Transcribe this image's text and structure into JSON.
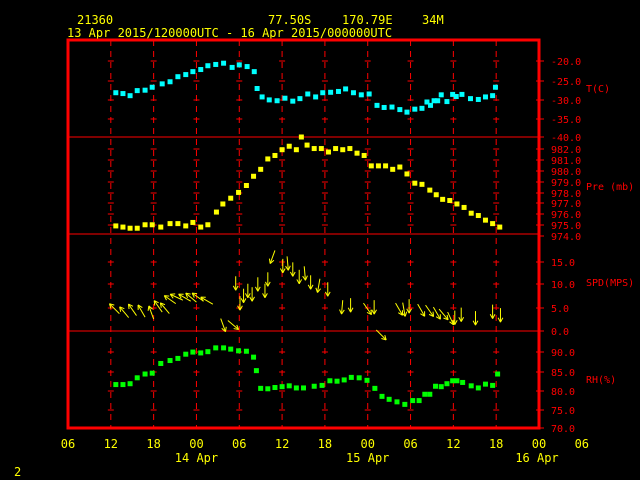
{
  "header": {
    "station": "21360",
    "lat": "77.50S",
    "lon": "170.79E",
    "elev": "34M",
    "period": "13 Apr 2015/120000UTC - 16 Apr 2015/000000UTC"
  },
  "footer": {
    "page_number": "2"
  },
  "colors": {
    "frame": "#ff0000",
    "grid": "#ff0000",
    "text": "#ffff00",
    "temp": "#00ffff",
    "pres": "#ffff00",
    "wind": "#ffff00",
    "rh": "#00ff00"
  },
  "chart_data": {
    "type": "scatter",
    "x_axis": {
      "unit": "hours since 13 Apr 06UTC",
      "range": [
        0,
        66
      ],
      "hour_ticks": [
        "06",
        "12",
        "18",
        "00",
        "06",
        "12",
        "18",
        "00",
        "06",
        "12",
        "18",
        "00",
        "06"
      ],
      "day_labels": [
        "14 Apr",
        "15 Apr",
        "16 Apr"
      ]
    },
    "panels": [
      {
        "name": "T(C)",
        "ticks": [
          "-20.0",
          "-25.0",
          "-30.0",
          "-35.0",
          "-40.0"
        ],
        "ylim": [
          -40,
          -17
        ],
        "points": [
          [
            6.7,
            -29.5
          ],
          [
            7.7,
            -29.7
          ],
          [
            8.7,
            -30.2
          ],
          [
            9.7,
            -29.0
          ],
          [
            10.8,
            -28.9
          ],
          [
            11.8,
            -28.2
          ],
          [
            13.2,
            -27.4
          ],
          [
            14.3,
            -26.9
          ],
          [
            15.4,
            -25.7
          ],
          [
            16.5,
            -25.2
          ],
          [
            17.5,
            -24.5
          ],
          [
            18.6,
            -24.0
          ],
          [
            19.6,
            -23.1
          ],
          [
            20.7,
            -22.8
          ],
          [
            21.8,
            -22.5
          ],
          [
            23.0,
            -23.5
          ],
          [
            24.0,
            -22.9
          ],
          [
            25.1,
            -23.3
          ],
          [
            26.1,
            -24.5
          ],
          [
            26.5,
            -28.5
          ],
          [
            27.2,
            -30.5
          ],
          [
            28.2,
            -31.2
          ],
          [
            29.3,
            -31.4
          ],
          [
            30.4,
            -30.8
          ],
          [
            31.5,
            -31.5
          ],
          [
            32.5,
            -30.9
          ],
          [
            33.6,
            -29.8
          ],
          [
            34.7,
            -30.5
          ],
          [
            35.7,
            -29.5
          ],
          [
            36.8,
            -29.4
          ],
          [
            37.9,
            -29.2
          ],
          [
            38.9,
            -28.6
          ],
          [
            40.0,
            -29.5
          ],
          [
            41.1,
            -30.0
          ],
          [
            42.2,
            -29.8
          ],
          [
            43.3,
            -32.5
          ],
          [
            44.3,
            -33.0
          ],
          [
            45.4,
            -32.9
          ],
          [
            46.5,
            -33.5
          ],
          [
            47.5,
            -34.1
          ],
          [
            48.6,
            -33.4
          ],
          [
            49.6,
            -33.2
          ],
          [
            50.3,
            -31.7
          ],
          [
            50.8,
            -32.5
          ],
          [
            51.3,
            -31.4
          ],
          [
            51.8,
            -31.4
          ],
          [
            52.3,
            -30.0
          ],
          [
            53.1,
            -31.6
          ],
          [
            53.9,
            -29.9
          ],
          [
            54.4,
            -30.4
          ],
          [
            55.2,
            -29.9
          ],
          [
            56.4,
            -30.9
          ],
          [
            57.5,
            -31.1
          ],
          [
            58.5,
            -30.5
          ],
          [
            59.5,
            -30.2
          ],
          [
            59.9,
            -28.2
          ]
        ]
      },
      {
        "name": "Pre (mb)",
        "ticks": [
          "982.0",
          "981.0",
          "980.0",
          "979.0",
          "978.0",
          "977.0",
          "976.0",
          "975.0",
          "974.0"
        ],
        "ylim": [
          974,
          982.4
        ],
        "points": [
          [
            6.7,
            974.7
          ],
          [
            7.7,
            974.6
          ],
          [
            8.7,
            974.5
          ],
          [
            9.7,
            974.5
          ],
          [
            10.8,
            974.8
          ],
          [
            11.8,
            974.8
          ],
          [
            13.0,
            974.6
          ],
          [
            14.3,
            974.9
          ],
          [
            15.4,
            974.9
          ],
          [
            16.5,
            974.7
          ],
          [
            17.5,
            975.0
          ],
          [
            18.6,
            974.6
          ],
          [
            19.6,
            974.8
          ],
          [
            20.8,
            975.9
          ],
          [
            21.7,
            976.6
          ],
          [
            22.8,
            977.1
          ],
          [
            23.9,
            977.6
          ],
          [
            25.0,
            978.2
          ],
          [
            26.0,
            979.0
          ],
          [
            27.0,
            979.6
          ],
          [
            28.0,
            980.5
          ],
          [
            29.0,
            980.8
          ],
          [
            30.0,
            981.3
          ],
          [
            31.0,
            981.6
          ],
          [
            32.0,
            981.3
          ],
          [
            32.7,
            982.4
          ],
          [
            33.5,
            981.7
          ],
          [
            34.5,
            981.4
          ],
          [
            35.5,
            981.4
          ],
          [
            36.5,
            981.1
          ],
          [
            37.5,
            981.4
          ],
          [
            38.5,
            981.3
          ],
          [
            39.5,
            981.4
          ],
          [
            40.5,
            981.0
          ],
          [
            41.5,
            980.8
          ],
          [
            42.5,
            979.9
          ],
          [
            43.5,
            979.9
          ],
          [
            44.5,
            979.9
          ],
          [
            45.5,
            979.6
          ],
          [
            46.5,
            979.8
          ],
          [
            47.5,
            979.2
          ],
          [
            48.6,
            978.4
          ],
          [
            49.6,
            978.3
          ],
          [
            50.7,
            977.8
          ],
          [
            51.6,
            977.4
          ],
          [
            52.5,
            977.0
          ],
          [
            53.5,
            976.9
          ],
          [
            54.5,
            976.6
          ],
          [
            55.5,
            976.3
          ],
          [
            56.5,
            975.8
          ],
          [
            57.5,
            975.6
          ],
          [
            58.5,
            975.2
          ],
          [
            59.5,
            974.9
          ],
          [
            60.5,
            974.6
          ]
        ]
      },
      {
        "name": "SPD(MPS)",
        "ticks": [
          "15.0",
          "10.0",
          "5.0",
          "0.0"
        ],
        "ylim": [
          0,
          19.5
        ],
        "wind": [
          [
            7.2,
            3.5,
            -45
          ],
          [
            8.5,
            2.7,
            -40
          ],
          [
            9.6,
            3.1,
            -35
          ],
          [
            10.8,
            2.8,
            -30
          ],
          [
            12.0,
            2.4,
            -20
          ],
          [
            13.2,
            3.8,
            -35
          ],
          [
            14.2,
            3.5,
            -40
          ],
          [
            15.1,
            5.5,
            -55
          ],
          [
            16.1,
            6.2,
            -65
          ],
          [
            17.2,
            6.0,
            -60
          ],
          [
            18.0,
            5.8,
            -50
          ],
          [
            19.0,
            6.0,
            -55
          ],
          [
            20.3,
            5.4,
            -60
          ],
          [
            21.4,
            2.5,
            160
          ],
          [
            22.4,
            2.1,
            130
          ],
          [
            23.5,
            11.0,
            180
          ],
          [
            24.1,
            7.0,
            180
          ],
          [
            24.6,
            8.5,
            180
          ],
          [
            25.2,
            9.5,
            180
          ],
          [
            25.8,
            8.8,
            180
          ],
          [
            26.6,
            10.8,
            180
          ],
          [
            27.6,
            9.5,
            180
          ],
          [
            28.0,
            11.8,
            180
          ],
          [
            29.0,
            16.2,
            200
          ],
          [
            30.1,
            14.5,
            180
          ],
          [
            30.7,
            15.0,
            175
          ],
          [
            31.5,
            13.8,
            180
          ],
          [
            32.4,
            12.3,
            180
          ],
          [
            33.1,
            13.0,
            175
          ],
          [
            34.0,
            11.2,
            180
          ],
          [
            35.3,
            10.5,
            190
          ],
          [
            36.4,
            9.8,
            180
          ],
          [
            38.5,
            6.2,
            185
          ],
          [
            39.6,
            6.6,
            180
          ],
          [
            41.4,
            5.6,
            145
          ],
          [
            42.9,
            6.2,
            180
          ],
          [
            43.2,
            0.2,
            135
          ],
          [
            45.9,
            5.6,
            150
          ],
          [
            46.9,
            5.7,
            170
          ],
          [
            47.8,
            6.4,
            180
          ],
          [
            49.0,
            5.4,
            150
          ],
          [
            50.1,
            5.2,
            145
          ],
          [
            51.2,
            4.8,
            150
          ],
          [
            52.0,
            4.4,
            140
          ],
          [
            53.2,
            3.8,
            155
          ],
          [
            54.2,
            4.1,
            180
          ],
          [
            55.1,
            4.7,
            180
          ],
          [
            57.1,
            4.0,
            180
          ],
          [
            59.5,
            5.3,
            180
          ],
          [
            60.6,
            4.6,
            180
          ]
        ]
      },
      {
        "name": "RH(%)",
        "ticks": [
          "90.0",
          "85.0",
          "80.0",
          "75.0",
          "70.0"
        ],
        "ylim": [
          70,
          93
        ],
        "points": [
          [
            6.7,
            80.3
          ],
          [
            7.7,
            80.3
          ],
          [
            8.7,
            80.5
          ],
          [
            9.7,
            81.9
          ],
          [
            10.8,
            82.8
          ],
          [
            11.8,
            83.0
          ],
          [
            13.0,
            85.3
          ],
          [
            14.3,
            86.0
          ],
          [
            15.4,
            86.5
          ],
          [
            16.5,
            87.5
          ],
          [
            17.5,
            88.0
          ],
          [
            18.6,
            87.8
          ],
          [
            19.6,
            88.1
          ],
          [
            20.7,
            89.0
          ],
          [
            21.8,
            89.0
          ],
          [
            22.8,
            88.7
          ],
          [
            23.9,
            88.3
          ],
          [
            25.0,
            88.2
          ],
          [
            26.0,
            86.8
          ],
          [
            26.4,
            83.6
          ],
          [
            27.0,
            79.4
          ],
          [
            28.0,
            79.3
          ],
          [
            29.0,
            79.6
          ],
          [
            30.0,
            79.8
          ],
          [
            31.0,
            80.0
          ],
          [
            32.0,
            79.5
          ],
          [
            33.0,
            79.5
          ],
          [
            34.5,
            79.9
          ],
          [
            35.6,
            80.1
          ],
          [
            36.7,
            81.2
          ],
          [
            37.7,
            81.1
          ],
          [
            38.7,
            81.4
          ],
          [
            39.7,
            82.0
          ],
          [
            40.8,
            81.9
          ],
          [
            41.9,
            81.3
          ],
          [
            43.0,
            79.4
          ],
          [
            44.0,
            77.5
          ],
          [
            45.0,
            76.8
          ],
          [
            46.1,
            76.2
          ],
          [
            47.2,
            75.6
          ],
          [
            48.3,
            76.5
          ],
          [
            49.2,
            76.5
          ],
          [
            50.0,
            78.0
          ],
          [
            50.7,
            78.0
          ],
          [
            51.5,
            79.9
          ],
          [
            52.3,
            79.8
          ],
          [
            53.1,
            80.5
          ],
          [
            53.9,
            81.2
          ],
          [
            54.5,
            81.2
          ],
          [
            55.3,
            80.8
          ],
          [
            56.5,
            80.0
          ],
          [
            57.5,
            79.5
          ],
          [
            58.5,
            80.4
          ],
          [
            59.5,
            80.1
          ],
          [
            60.2,
            82.8
          ]
        ]
      }
    ]
  }
}
